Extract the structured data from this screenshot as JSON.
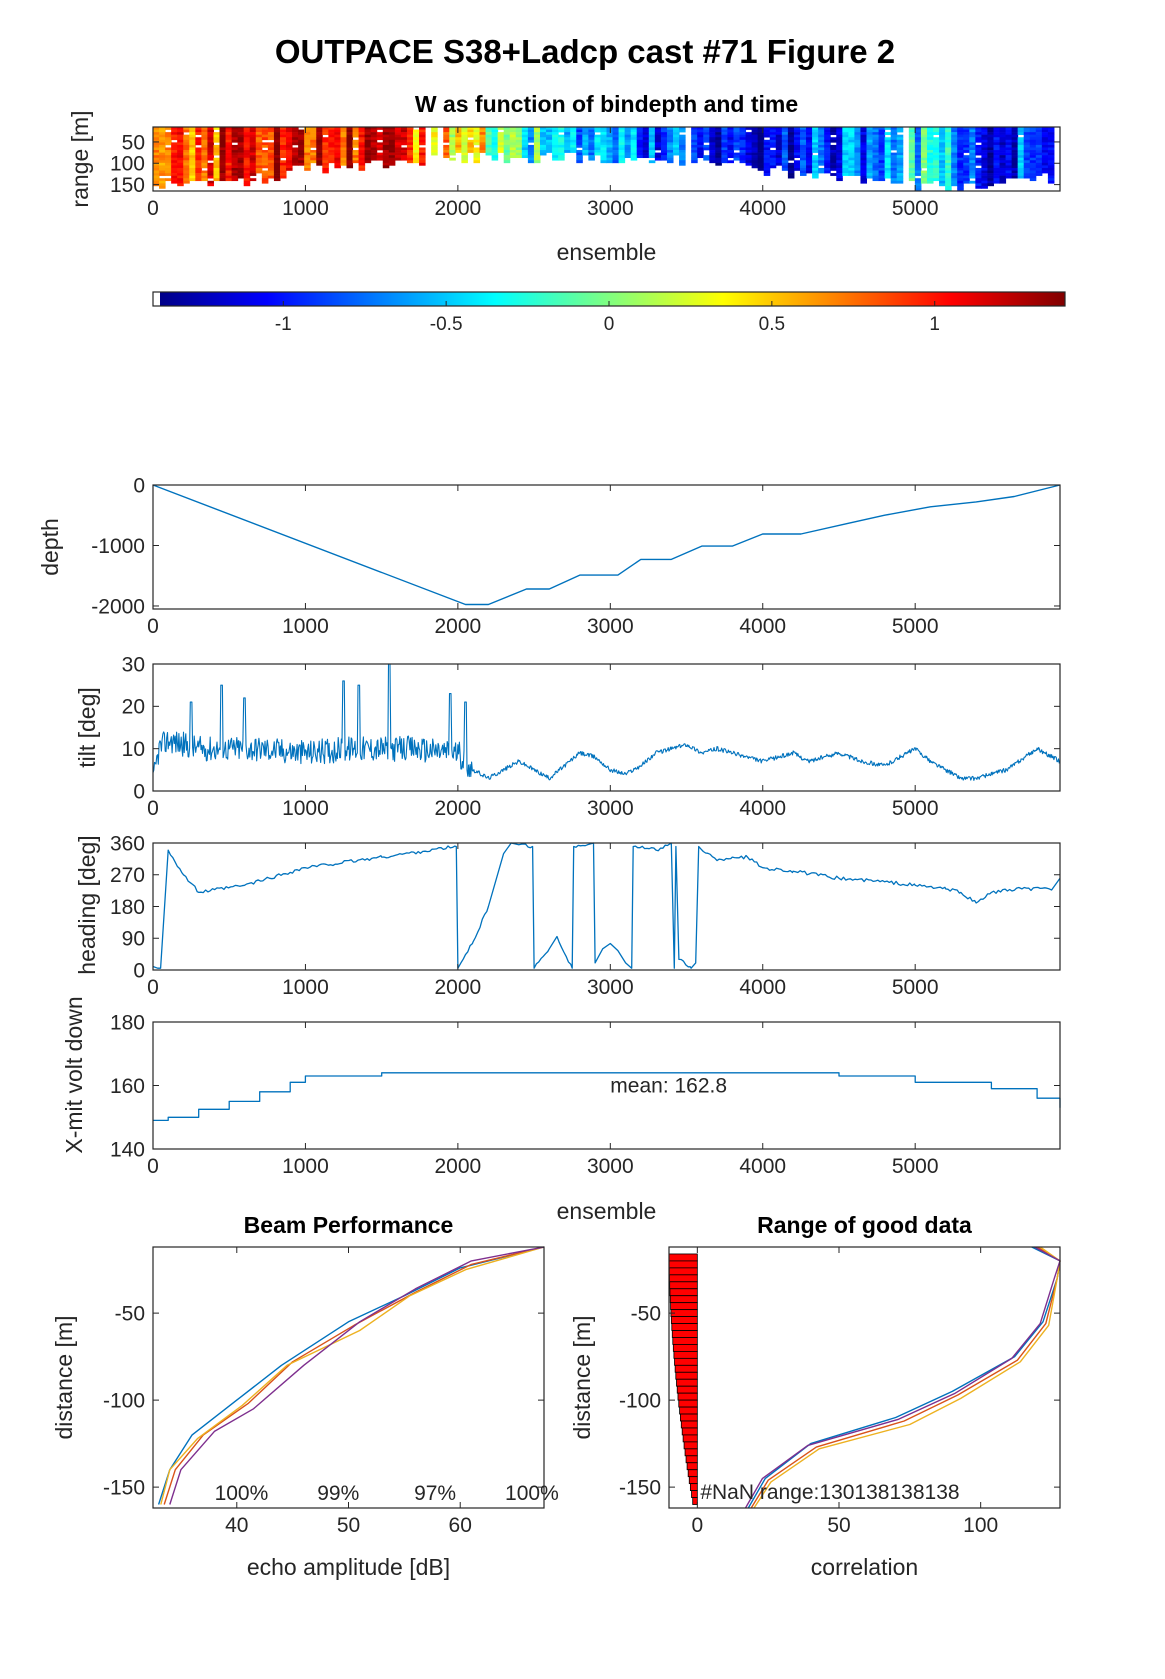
{
  "figure_title": "OUTPACE S38+Ladcp cast #71 Figure 2",
  "chart_data": [
    {
      "id": "w_image",
      "type": "heatmap",
      "title": "W as function of bindepth and time",
      "xlabel": "ensemble",
      "ylabel": "range [m]",
      "xlim": [
        0,
        5950
      ],
      "ylim": [
        15,
        165
      ],
      "y_reversed": true,
      "xticks": [
        0,
        1000,
        2000,
        3000,
        4000,
        5000
      ],
      "yticks": [
        50,
        100,
        150
      ],
      "x": [
        0,
        500,
        1000,
        1500,
        2000,
        2500,
        3000,
        3500,
        4000,
        4500,
        5000,
        5500,
        5950
      ],
      "w_mean": [
        0.7,
        1.0,
        1.1,
        1.0,
        0.5,
        -0.3,
        -0.5,
        -1.0,
        -1.1,
        -0.8,
        -0.4,
        -1.0,
        -0.8
      ],
      "valid_range_max": [
        150,
        150,
        110,
        100,
        85,
        85,
        90,
        95,
        110,
        140,
        150,
        150,
        130
      ],
      "clim": [
        -1.4,
        1.4
      ]
    },
    {
      "id": "colorbar",
      "type": "colorbar",
      "ticks": [
        -1,
        -0.5,
        0,
        0.5,
        1
      ],
      "tick_labels": [
        "-1",
        "-0.5",
        "0",
        "0.5",
        "1"
      ],
      "lim": [
        -1.4,
        1.4
      ]
    },
    {
      "id": "depth",
      "type": "line",
      "ylabel": "depth",
      "xlim": [
        0,
        5950
      ],
      "ylim": [
        -2050,
        0
      ],
      "xticks": [
        0,
        1000,
        2000,
        3000,
        4000,
        5000
      ],
      "yticks": [
        -2000,
        -1000,
        0
      ],
      "x": [
        0,
        2050,
        2200,
        2450,
        2600,
        2800,
        3050,
        3200,
        3400,
        3600,
        3800,
        4000,
        4250,
        4550,
        4800,
        5100,
        5400,
        5650,
        5950
      ],
      "y": [
        0,
        -1975,
        -1975,
        -1720,
        -1720,
        -1490,
        -1490,
        -1230,
        -1230,
        -1010,
        -1010,
        -810,
        -810,
        -640,
        -500,
        -360,
        -280,
        -190,
        0
      ],
      "color": "#0072bd"
    },
    {
      "id": "tilt",
      "type": "line",
      "ylabel": "tilt [deg]",
      "xlim": [
        0,
        5950
      ],
      "ylim": [
        0,
        30
      ],
      "xticks": [
        0,
        1000,
        2000,
        3000,
        4000,
        5000
      ],
      "yticks": [
        0,
        10,
        20,
        30
      ],
      "x": [
        0,
        40,
        100,
        200,
        300,
        500,
        700,
        1000,
        1300,
        1500,
        1700,
        2000,
        2100,
        2200,
        2400,
        2500,
        2600,
        2700,
        2800,
        2900,
        3000,
        3100,
        3200,
        3300,
        3400,
        3500,
        3600,
        3700,
        3800,
        4000,
        4200,
        4300,
        4500,
        4650,
        4800,
        5000,
        5100,
        5300,
        5400,
        5600,
        5800,
        5950
      ],
      "y": [
        2,
        10,
        12,
        11,
        10,
        10,
        10,
        9,
        10,
        10,
        10,
        9,
        5,
        3,
        7,
        5,
        3,
        6,
        9,
        8,
        5,
        4,
        6,
        9,
        10,
        11,
        9,
        10,
        9,
        7,
        9,
        7,
        9,
        7,
        6,
        10,
        7,
        3,
        3,
        5,
        10,
        7
      ],
      "noise_amplitude": [
        [
          0,
          2100,
          6
        ],
        [
          2100,
          5950,
          1
        ]
      ],
      "spikes": [
        [
          250,
          21
        ],
        [
          450,
          25
        ],
        [
          600,
          22
        ],
        [
          1250,
          26
        ],
        [
          1350,
          25
        ],
        [
          1550,
          30
        ],
        [
          1950,
          23
        ],
        [
          2050,
          21
        ]
      ],
      "color": "#0072bd"
    },
    {
      "id": "heading",
      "type": "line",
      "ylabel": "heading [deg]",
      "xlim": [
        0,
        5950
      ],
      "ylim": [
        0,
        360
      ],
      "xticks": [
        0,
        1000,
        2000,
        3000,
        4000,
        5000
      ],
      "yticks": [
        0,
        90,
        180,
        270,
        360
      ],
      "x": [
        0,
        30,
        50,
        100,
        200,
        300,
        600,
        1000,
        1500,
        1990,
        2000,
        2020,
        2100,
        2200,
        2300,
        2350,
        2400,
        2490,
        2500,
        2600,
        2650,
        2750,
        2760,
        2850,
        2890,
        2900,
        2950,
        3000,
        3050,
        3100,
        3140,
        3150,
        3300,
        3400,
        3420,
        3430,
        3450,
        3530,
        3560,
        3580,
        3700,
        3800,
        3900,
        4000,
        4200,
        4500,
        4800,
        5000,
        5200,
        5300,
        5400,
        5500,
        5700,
        5900,
        5950
      ],
      "y": [
        10,
        5,
        5,
        340,
        270,
        220,
        240,
        290,
        320,
        350,
        5,
        20,
        80,
        180,
        330,
        360,
        355,
        350,
        5,
        60,
        95,
        5,
        350,
        355,
        360,
        20,
        60,
        75,
        55,
        20,
        5,
        350,
        340,
        360,
        5,
        350,
        30,
        5,
        20,
        350,
        310,
        320,
        320,
        290,
        280,
        260,
        250,
        240,
        230,
        220,
        190,
        220,
        230,
        230,
        260
      ],
      "color": "#0072bd"
    },
    {
      "id": "voltage",
      "type": "line",
      "ylabel": "X-mit volt down",
      "xlabel": "ensemble",
      "xlim": [
        0,
        5950
      ],
      "ylim": [
        140,
        180
      ],
      "xticks": [
        0,
        1000,
        2000,
        3000,
        4000,
        5000
      ],
      "yticks": [
        140,
        160,
        180
      ],
      "x": [
        0,
        100,
        300,
        500,
        700,
        900,
        1000,
        1500,
        2000,
        3000,
        4000,
        4500,
        5000,
        5500,
        5800,
        5950
      ],
      "y": [
        149,
        150,
        152.5,
        155,
        158,
        161,
        163,
        164,
        164,
        164,
        164,
        163,
        161,
        159,
        156,
        153
      ],
      "annotation": "mean: 162.8",
      "color": "#0072bd"
    },
    {
      "id": "beam_performance",
      "type": "line",
      "title": "Beam Performance",
      "xlabel": "echo amplitude [dB]",
      "ylabel": "distance [m]",
      "xlim": [
        32.5,
        67.5
      ],
      "ylim": [
        -162,
        -12
      ],
      "xticks": [
        40,
        50,
        60
      ],
      "yticks": [
        -150,
        -100,
        -50
      ],
      "percent_labels": [
        "100%",
        "99%",
        "97%",
        "100%"
      ],
      "series": [
        {
          "color": "#0072bd",
          "points": [
            [
              33,
              -160
            ],
            [
              34,
              -140
            ],
            [
              36,
              -120
            ],
            [
              40,
              -100
            ],
            [
              44,
              -80
            ],
            [
              50,
              -55
            ],
            [
              55,
              -40
            ],
            [
              60,
              -24
            ],
            [
              67.5,
              -12
            ]
          ]
        },
        {
          "color": "#d95319",
          "points": [
            [
              33.5,
              -160
            ],
            [
              34.5,
              -140
            ],
            [
              37,
              -120
            ],
            [
              41,
              -102
            ],
            [
              45,
              -78
            ],
            [
              50.5,
              -57
            ],
            [
              56,
              -38
            ],
            [
              61,
              -22
            ],
            [
              67.5,
              -12
            ]
          ]
        },
        {
          "color": "#edb120",
          "points": [
            [
              33.2,
              -160
            ],
            [
              34,
              -140
            ],
            [
              36.5,
              -122
            ],
            [
              40.5,
              -103
            ],
            [
              44.5,
              -80
            ],
            [
              51,
              -60
            ],
            [
              55.5,
              -40
            ],
            [
              60.5,
              -25
            ],
            [
              67.5,
              -12
            ]
          ]
        },
        {
          "color": "#7e2f8e",
          "points": [
            [
              34,
              -160
            ],
            [
              35,
              -140
            ],
            [
              38,
              -118
            ],
            [
              41.5,
              -105
            ],
            [
              46,
              -80
            ],
            [
              51,
              -55
            ],
            [
              56,
              -36
            ],
            [
              61,
              -20
            ],
            [
              67.5,
              -12
            ]
          ]
        }
      ],
      "bar_range": [
        38,
        64
      ]
    },
    {
      "id": "range_good_data",
      "type": "line",
      "title": "Range of good data",
      "xlabel": "correlation",
      "ylabel": "distance [m]",
      "xlim": [
        -10,
        128
      ],
      "ylim": [
        -162,
        -12
      ],
      "xticks": [
        0,
        50,
        100
      ],
      "yticks": [
        -150,
        -100,
        -50
      ],
      "nan_label": "#NaN range:130138138138",
      "nan_bars": {
        "color": "#ff0000",
        "bin_step": 4,
        "top_width": 10,
        "bottom_width": 1
      },
      "series": [
        {
          "color": "#0072bd",
          "points": [
            [
              18,
              -162
            ],
            [
              24,
              -145
            ],
            [
              40,
              -125
            ],
            [
              70,
              -110
            ],
            [
              90,
              -95
            ],
            [
              112,
              -75
            ],
            [
              122,
              -55
            ],
            [
              127,
              -30
            ],
            [
              128,
              -20
            ],
            [
              118,
              -12
            ]
          ]
        },
        {
          "color": "#d95319",
          "points": [
            [
              19,
              -162
            ],
            [
              25,
              -146
            ],
            [
              42,
              -127
            ],
            [
              73,
              -112
            ],
            [
              92,
              -97
            ],
            [
              113,
              -77
            ],
            [
              123,
              -56
            ],
            [
              127,
              -30
            ],
            [
              128,
              -20
            ],
            [
              120,
              -12
            ]
          ]
        },
        {
          "color": "#edb120",
          "points": [
            [
              20,
              -162
            ],
            [
              26,
              -147
            ],
            [
              43,
              -128
            ],
            [
              75,
              -114
            ],
            [
              93,
              -99
            ],
            [
              114,
              -78
            ],
            [
              124,
              -57
            ],
            [
              127,
              -30
            ],
            [
              128,
              -20
            ],
            [
              121,
              -12
            ]
          ]
        },
        {
          "color": "#7e2f8e",
          "points": [
            [
              17,
              -162
            ],
            [
              23,
              -145
            ],
            [
              39,
              -126
            ],
            [
              71,
              -111
            ],
            [
              91,
              -96
            ],
            [
              111,
              -76
            ],
            [
              121,
              -56
            ],
            [
              126,
              -30
            ],
            [
              128,
              -20
            ],
            [
              119,
              -12
            ]
          ]
        }
      ]
    }
  ]
}
